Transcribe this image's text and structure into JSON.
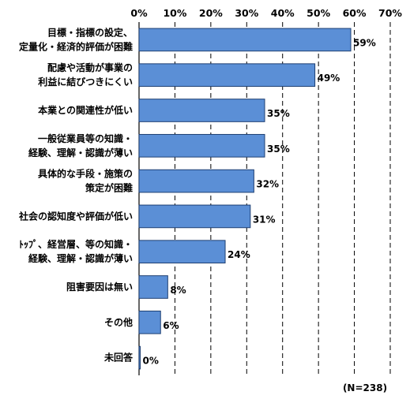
{
  "chart_data": {
    "type": "bar",
    "orientation": "horizontal",
    "categories": [
      [
        "目標・指標の設定、",
        "定量化・経済的評価が困難"
      ],
      [
        "配慮や活動が事業の",
        "利益に結びつきにくい"
      ],
      [
        "本業との関連性が低い"
      ],
      [
        "一般従業員等の知識・",
        "経験、理解・認識が薄い"
      ],
      [
        "具体的な手段・施策の",
        "策定が困難"
      ],
      [
        "社会の認知度や評価が低い"
      ],
      [
        "ﾄｯﾌﾟ、経営層、等の知識・",
        "経験、理解・認識が薄い"
      ],
      [
        "阻害要因は無い"
      ],
      [
        "その他"
      ],
      [
        "未回答"
      ]
    ],
    "values": [
      59,
      49,
      35,
      35,
      32,
      31,
      24,
      8,
      6,
      0
    ],
    "value_labels": [
      "59%",
      "49%",
      "35%",
      "35%",
      "32%",
      "31%",
      "24%",
      "8%",
      "6%",
      "0%"
    ],
    "xlim": [
      0,
      70
    ],
    "ticks": [
      0,
      10,
      20,
      30,
      40,
      50,
      60,
      70
    ],
    "tick_labels": [
      "0%",
      "10%",
      "20%",
      "30%",
      "40%",
      "50%",
      "60%",
      "70%"
    ],
    "axis_position": "top",
    "grid": "vertical dashed",
    "bar_color": "#5b8fd6",
    "bar_edge_color": "#1f3f72",
    "note": "(N=238)"
  }
}
